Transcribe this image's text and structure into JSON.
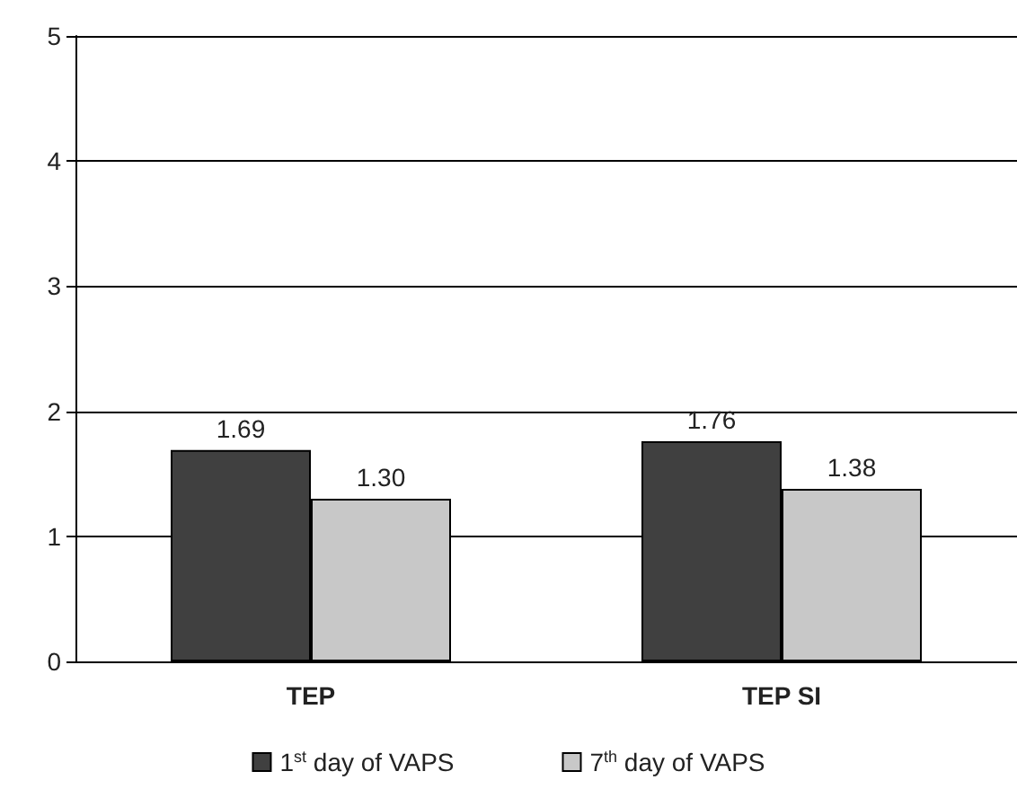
{
  "chart_data": {
    "type": "bar",
    "categories": [
      "TEP",
      "TEP SI"
    ],
    "series": [
      {
        "name": "1$^{st}$ day of VAPS",
        "color": "#404040",
        "values": [
          1.69,
          1.76
        ],
        "value_labels": [
          "1.69",
          "1.76"
        ]
      },
      {
        "name": "7$^{th}$ day of VAPS",
        "color": "#c8c8c8",
        "values": [
          1.3,
          1.38
        ],
        "value_labels": [
          "1.30",
          "1.38"
        ]
      }
    ],
    "ylim": [
      0,
      5
    ],
    "yticks": [
      0,
      1,
      2,
      3,
      4,
      5
    ],
    "grid": "y",
    "legend": "bottom"
  }
}
